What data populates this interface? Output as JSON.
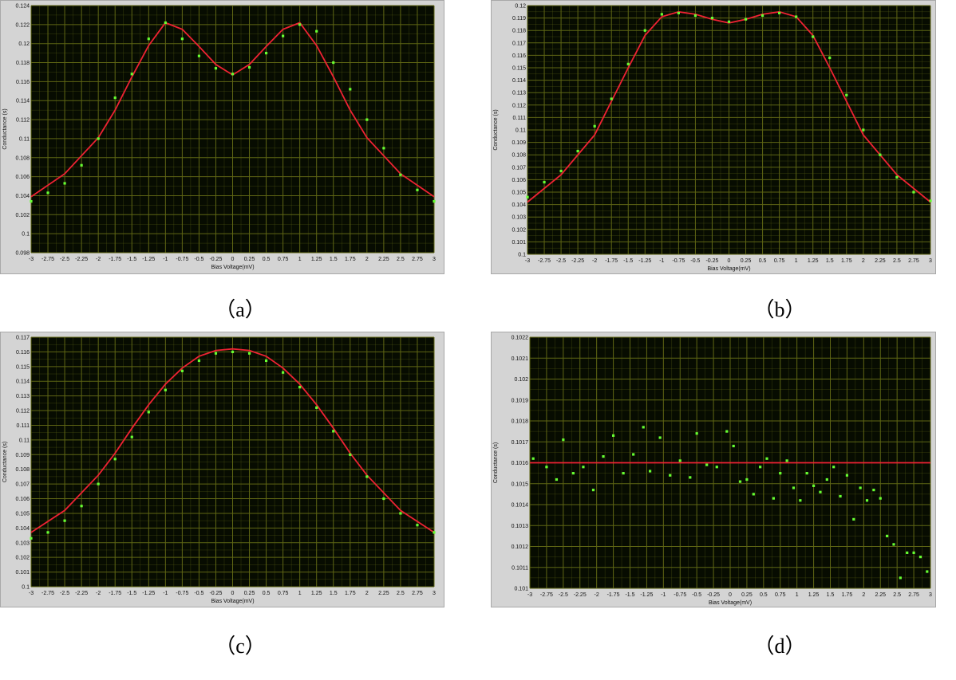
{
  "panel_labels": [
    "（a）",
    "（b）",
    "（c）",
    "（d）"
  ],
  "colors": {
    "plot_bg": "#070c01",
    "grid": "#5f6614",
    "fit": "#ee2233",
    "data": "#66ff33",
    "frame": "#d4d4d4"
  },
  "chart_data": [
    {
      "type": "scatter",
      "title": "",
      "xlabel": "Bias Voltage(mV)",
      "ylabel": "Conductance (s)",
      "xlim": [
        -3,
        3
      ],
      "ylim": [
        0.098,
        0.124
      ],
      "xticks": [
        "-3",
        "-2.75",
        "-2.5",
        "-2.25",
        "-2",
        "-1.75",
        "-1.5",
        "-1.25",
        "-1",
        "-0.75",
        "-0.5",
        "-0.25",
        "0",
        "0.25",
        "0.5",
        "0.75",
        "1",
        "1.25",
        "1.5",
        "1.75",
        "2",
        "2.25",
        "2.5",
        "2.75",
        "3"
      ],
      "yticks": [
        "0.098",
        "0.1",
        "0.102",
        "0.104",
        "0.106",
        "0.108",
        "0.11",
        "0.112",
        "0.114",
        "0.116",
        "0.118",
        "0.12",
        "0.122",
        "0.124"
      ],
      "grid": true,
      "series": [
        {
          "kind": "line",
          "x": [
            -3,
            -2.5,
            -2,
            -1.75,
            -1.5,
            -1.25,
            -1,
            -0.75,
            -0.5,
            -0.25,
            0,
            0.25,
            0.5,
            0.75,
            1,
            1.25,
            1.5,
            1.75,
            2,
            2.5,
            3
          ],
          "y": [
            0.1039,
            0.1063,
            0.1101,
            0.113,
            0.1165,
            0.1198,
            0.1222,
            0.1215,
            0.1197,
            0.1178,
            0.1167,
            0.1178,
            0.1197,
            0.1215,
            0.1222,
            0.1198,
            0.1165,
            0.113,
            0.1101,
            0.1063,
            0.1039
          ]
        },
        {
          "kind": "points",
          "x": [
            -3,
            -2.75,
            -2.5,
            -2.25,
            -2,
            -1.75,
            -1.5,
            -1.25,
            -1,
            -0.75,
            -0.5,
            -0.25,
            0,
            0.25,
            0.5,
            0.75,
            1,
            1.25,
            1.5,
            1.75,
            2,
            2.25,
            2.5,
            2.75,
            3
          ],
          "y": [
            0.1034,
            0.1043,
            0.1053,
            0.1072,
            0.11,
            0.1143,
            0.1168,
            0.1205,
            0.1222,
            0.1205,
            0.1187,
            0.1174,
            0.1168,
            0.1175,
            0.119,
            0.1208,
            0.122,
            0.1213,
            0.118,
            0.1152,
            0.112,
            0.109,
            0.1062,
            0.1046,
            0.1034
          ]
        }
      ]
    },
    {
      "type": "scatter",
      "title": "",
      "xlabel": "Bias Voltage(mV)",
      "ylabel": "Conductance (s)",
      "xlim": [
        -3,
        3
      ],
      "ylim": [
        0.1,
        0.12
      ],
      "xticks": [
        "-3",
        "-2.75",
        "-2.5",
        "-2.25",
        "-2",
        "-1.75",
        "-1.5",
        "-1.25",
        "-1",
        "-0.75",
        "-0.5",
        "-0.25",
        "0",
        "0.25",
        "0.5",
        "0.75",
        "1",
        "1.25",
        "1.5",
        "1.75",
        "2",
        "2.25",
        "2.5",
        "2.75",
        "3"
      ],
      "yticks": [
        "0.1",
        "0.101",
        "0.102",
        "0.103",
        "0.104",
        "0.105",
        "0.106",
        "0.107",
        "0.108",
        "0.109",
        "0.11",
        "0.111",
        "0.112",
        "0.113",
        "0.114",
        "0.115",
        "0.116",
        "0.117",
        "0.118",
        "0.119",
        "0.12"
      ],
      "grid": true,
      "series": [
        {
          "kind": "line",
          "x": [
            -3,
            -2.5,
            -2,
            -1.75,
            -1.5,
            -1.25,
            -1,
            -0.75,
            -0.5,
            -0.25,
            0,
            0.25,
            0.5,
            0.75,
            1,
            1.25,
            1.5,
            1.75,
            2,
            2.5,
            3
          ],
          "y": [
            0.1042,
            0.1064,
            0.1096,
            0.1123,
            0.115,
            0.1176,
            0.1191,
            0.1195,
            0.1193,
            0.1189,
            0.1186,
            0.1189,
            0.1193,
            0.1195,
            0.1191,
            0.1176,
            0.115,
            0.1123,
            0.1096,
            0.1064,
            0.1042
          ]
        },
        {
          "kind": "points",
          "x": [
            -3,
            -2.75,
            -2.5,
            -2.25,
            -2,
            -1.75,
            -1.5,
            -1.25,
            -1,
            -0.75,
            -0.5,
            -0.25,
            0,
            0.25,
            0.5,
            0.75,
            1,
            1.25,
            1.5,
            1.75,
            2,
            2.25,
            2.5,
            2.75,
            3
          ],
          "y": [
            0.1046,
            0.1058,
            0.1067,
            0.1083,
            0.1103,
            0.1125,
            0.1153,
            0.118,
            0.1193,
            0.1194,
            0.1192,
            0.119,
            0.1187,
            0.1189,
            0.1192,
            0.1194,
            0.1191,
            0.1175,
            0.1158,
            0.1128,
            0.11,
            0.108,
            0.1062,
            0.105,
            0.1043
          ]
        }
      ]
    },
    {
      "type": "scatter",
      "title": "",
      "xlabel": "Bias Voltage(mV)",
      "ylabel": "Conductance (s)",
      "xlim": [
        -3,
        3
      ],
      "ylim": [
        0.1,
        0.117
      ],
      "xticks": [
        "-3",
        "-2.75",
        "-2.5",
        "-2.25",
        "-2",
        "-1.75",
        "-1.5",
        "-1.25",
        "-1",
        "-0.75",
        "-0.5",
        "-0.25",
        "0",
        "0.25",
        "0.5",
        "0.75",
        "1",
        "1.25",
        "1.5",
        "1.75",
        "2",
        "2.25",
        "2.5",
        "2.75",
        "3"
      ],
      "yticks": [
        "0.1",
        "0.101",
        "0.102",
        "0.103",
        "0.104",
        "0.105",
        "0.106",
        "0.107",
        "0.108",
        "0.109",
        "0.11",
        "0.111",
        "0.112",
        "0.113",
        "0.114",
        "0.115",
        "0.116",
        "0.117"
      ],
      "grid": true,
      "series": [
        {
          "kind": "line",
          "x": [
            -3,
            -2.5,
            -2,
            -1.75,
            -1.5,
            -1.25,
            -1,
            -0.75,
            -0.5,
            -0.25,
            0,
            0.25,
            0.5,
            0.75,
            1,
            1.25,
            1.5,
            1.75,
            2,
            2.5,
            3
          ],
          "y": [
            0.1037,
            0.1052,
            0.1076,
            0.1091,
            0.1108,
            0.1124,
            0.1138,
            0.1149,
            0.1157,
            0.1161,
            0.1162,
            0.1161,
            0.1157,
            0.1149,
            0.1138,
            0.1124,
            0.1108,
            0.1091,
            0.1076,
            0.1052,
            0.1037
          ]
        },
        {
          "kind": "points",
          "x": [
            -3,
            -2.75,
            -2.5,
            -2.25,
            -2,
            -1.75,
            -1.5,
            -1.25,
            -1,
            -0.75,
            -0.5,
            -0.25,
            0,
            0.25,
            0.5,
            0.75,
            1,
            1.25,
            1.5,
            1.75,
            2,
            2.25,
            2.5,
            2.75,
            3
          ],
          "y": [
            0.1033,
            0.1037,
            0.1045,
            0.1055,
            0.107,
            0.1087,
            0.1102,
            0.1119,
            0.1134,
            0.1147,
            0.1154,
            0.1159,
            0.116,
            0.1159,
            0.1154,
            0.1146,
            0.1136,
            0.1122,
            0.1106,
            0.109,
            0.1075,
            0.106,
            0.105,
            0.1042,
            0.1037
          ]
        }
      ]
    },
    {
      "type": "scatter",
      "title": "",
      "xlabel": "Bias Voltage(mV)",
      "ylabel": "Conductance (s)",
      "xlim": [
        -3,
        3
      ],
      "ylim": [
        0.101,
        0.1022
      ],
      "xticks": [
        "-3",
        "-2.75",
        "-2.5",
        "-2.25",
        "-2",
        "-1.75",
        "-1.5",
        "-1.25",
        "-1",
        "-0.75",
        "-0.5",
        "-0.25",
        "0",
        "0.25",
        "0.5",
        "0.75",
        "1",
        "1.25",
        "1.5",
        "1.75",
        "2",
        "2.25",
        "2.5",
        "2.75",
        "3"
      ],
      "yticks": [
        "0.101",
        "0.1011",
        "0.1012",
        "0.1013",
        "0.1014",
        "0.1015",
        "0.1016",
        "0.1017",
        "0.1018",
        "0.1019",
        "0.102",
        "0.1021",
        "0.1022"
      ],
      "grid": true,
      "series": [
        {
          "kind": "line",
          "x": [
            -3,
            3
          ],
          "y": [
            0.1016,
            0.1016
          ]
        },
        {
          "kind": "points",
          "x": [
            -2.95,
            -2.75,
            -2.6,
            -2.5,
            -2.35,
            -2.2,
            -2.05,
            -1.9,
            -1.75,
            -1.6,
            -1.45,
            -1.3,
            -1.2,
            -1.05,
            -0.9,
            -0.75,
            -0.6,
            -0.5,
            -0.35,
            -0.2,
            -0.05,
            0.05,
            0.15,
            0.25,
            0.35,
            0.45,
            0.55,
            0.65,
            0.75,
            0.85,
            0.95,
            1.05,
            1.15,
            1.25,
            1.35,
            1.45,
            1.55,
            1.65,
            1.75,
            1.85,
            1.95,
            2.05,
            2.15,
            2.25,
            2.35,
            2.45,
            2.55,
            2.65,
            2.75,
            2.85,
            2.95
          ],
          "y": [
            0.10162,
            0.10158,
            0.10152,
            0.10171,
            0.10155,
            0.10158,
            0.10147,
            0.10163,
            0.10173,
            0.10155,
            0.10164,
            0.10177,
            0.10156,
            0.10172,
            0.10154,
            0.10161,
            0.10153,
            0.10174,
            0.10159,
            0.10158,
            0.10175,
            0.10168,
            0.10151,
            0.10152,
            0.10145,
            0.10158,
            0.10162,
            0.10143,
            0.10155,
            0.10161,
            0.10148,
            0.10142,
            0.10155,
            0.10149,
            0.10146,
            0.10152,
            0.10158,
            0.10144,
            0.10154,
            0.10133,
            0.10148,
            0.10142,
            0.10147,
            0.10143,
            0.10125,
            0.10121,
            0.10105,
            0.10117,
            0.10117,
            0.10115,
            0.10108
          ]
        }
      ]
    }
  ]
}
